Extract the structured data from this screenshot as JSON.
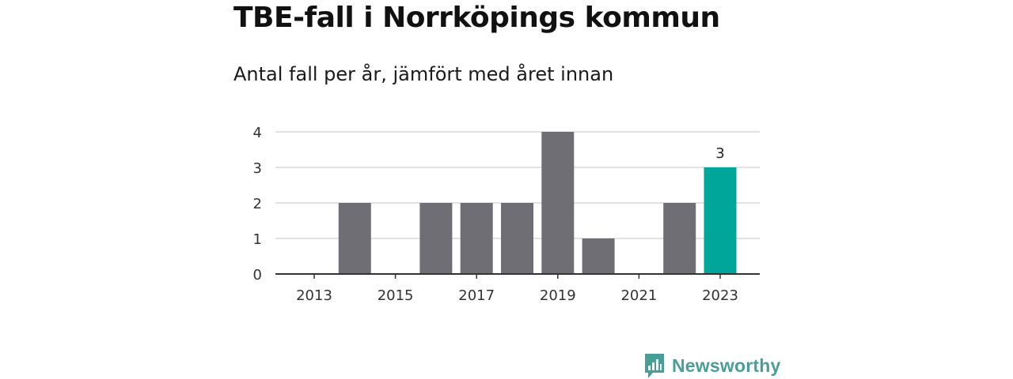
{
  "title": "TBE-fall i Norrköpings kommun",
  "subtitle": "Antal fall per år, jämfört med året innan",
  "brand": {
    "name": "Newsworthy",
    "logo_icon": "bar-chart-speech-bubble-icon",
    "color": "#4a9e98"
  },
  "colors": {
    "bar": "#6f6e75",
    "highlight": "#00a699",
    "grid": "#d9d9d9",
    "axis": "#333333"
  },
  "chart_data": {
    "type": "bar",
    "title": "TBE-fall i Norrköpings kommun",
    "subtitle": "Antal fall per år, jämfört med året innan",
    "categories": [
      "2013",
      "2014",
      "2015",
      "2016",
      "2017",
      "2018",
      "2019",
      "2020",
      "2021",
      "2022",
      "2023"
    ],
    "values": [
      0,
      2,
      0,
      2,
      2,
      2,
      4,
      1,
      0,
      2,
      3
    ],
    "highlight_index": 10,
    "data_labels": [
      {
        "index": 10,
        "text": "3"
      }
    ],
    "x_tick_labels": [
      "2013",
      "2015",
      "2017",
      "2019",
      "2021",
      "2023"
    ],
    "y_ticks": [
      0,
      1,
      2,
      3,
      4
    ],
    "ylim": [
      0,
      4
    ],
    "grid": true,
    "legend": "none"
  }
}
